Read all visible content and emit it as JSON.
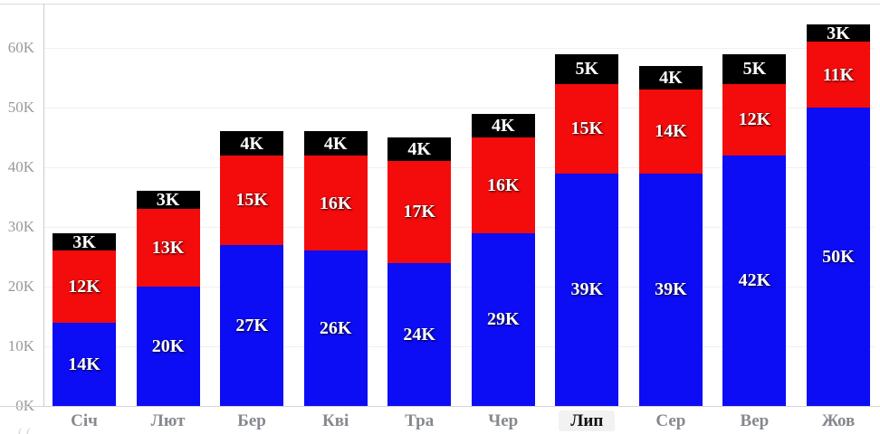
{
  "chart_data": {
    "type": "bar",
    "stacked": true,
    "title": "",
    "xlabel": "",
    "ylabel": "",
    "legend": false,
    "grid": true,
    "ylim": [
      0,
      67
    ],
    "y_ticks": [
      {
        "value": 0,
        "label": "0K"
      },
      {
        "value": 10,
        "label": "10K"
      },
      {
        "value": 20,
        "label": "20K"
      },
      {
        "value": 30,
        "label": "30K"
      },
      {
        "value": 40,
        "label": "40K"
      },
      {
        "value": 50,
        "label": "50K"
      },
      {
        "value": 60,
        "label": "60K"
      }
    ],
    "categories": [
      "Січ",
      "Лют",
      "Бер",
      "Кві",
      "Тра",
      "Чер",
      "Лип",
      "Сер",
      "Вер",
      "Жов"
    ],
    "highlighted_category": "Лип",
    "series": [
      {
        "name": "bottom-blue-segment",
        "color": "#0c0cf5",
        "values": [
          14,
          20,
          27,
          26,
          24,
          29,
          39,
          39,
          42,
          50
        ],
        "labels": [
          "14K",
          "20K",
          "27K",
          "26K",
          "24K",
          "29K",
          "39K",
          "39K",
          "42K",
          "50K"
        ]
      },
      {
        "name": "middle-red-segment",
        "color": "#f40b0b",
        "values": [
          12,
          13,
          15,
          16,
          17,
          16,
          15,
          14,
          12,
          11
        ],
        "labels": [
          "12K",
          "13K",
          "15K",
          "16K",
          "17K",
          "16K",
          "15K",
          "14K",
          "12K",
          "11K"
        ]
      },
      {
        "name": "top-black-segment",
        "color": "#000000",
        "values": [
          3,
          3,
          4,
          4,
          4,
          4,
          5,
          4,
          5,
          3
        ],
        "labels": [
          "3K",
          "3K",
          "4K",
          "4K",
          "4K",
          "4K",
          "5K",
          "4K",
          "5K",
          "3K"
        ]
      }
    ]
  },
  "colors": {
    "series_blue": "#0c0cf5",
    "series_red": "#f40b0b",
    "series_black": "#000000",
    "gridline": "#f0f0f0",
    "axis_line": "#cccccc",
    "bottom_axis_line": "#d4d4d4",
    "top_border": "#dbdbdb",
    "y_tick_text": "#999999",
    "x_tick_text": "#85888e",
    "x_tick_text_active": "#111111",
    "x_tick_active_bg": "#f2f2f2",
    "segment_label_text": "#ffffff"
  },
  "fragments": {
    "clipped_bottom_left": "(("
  }
}
